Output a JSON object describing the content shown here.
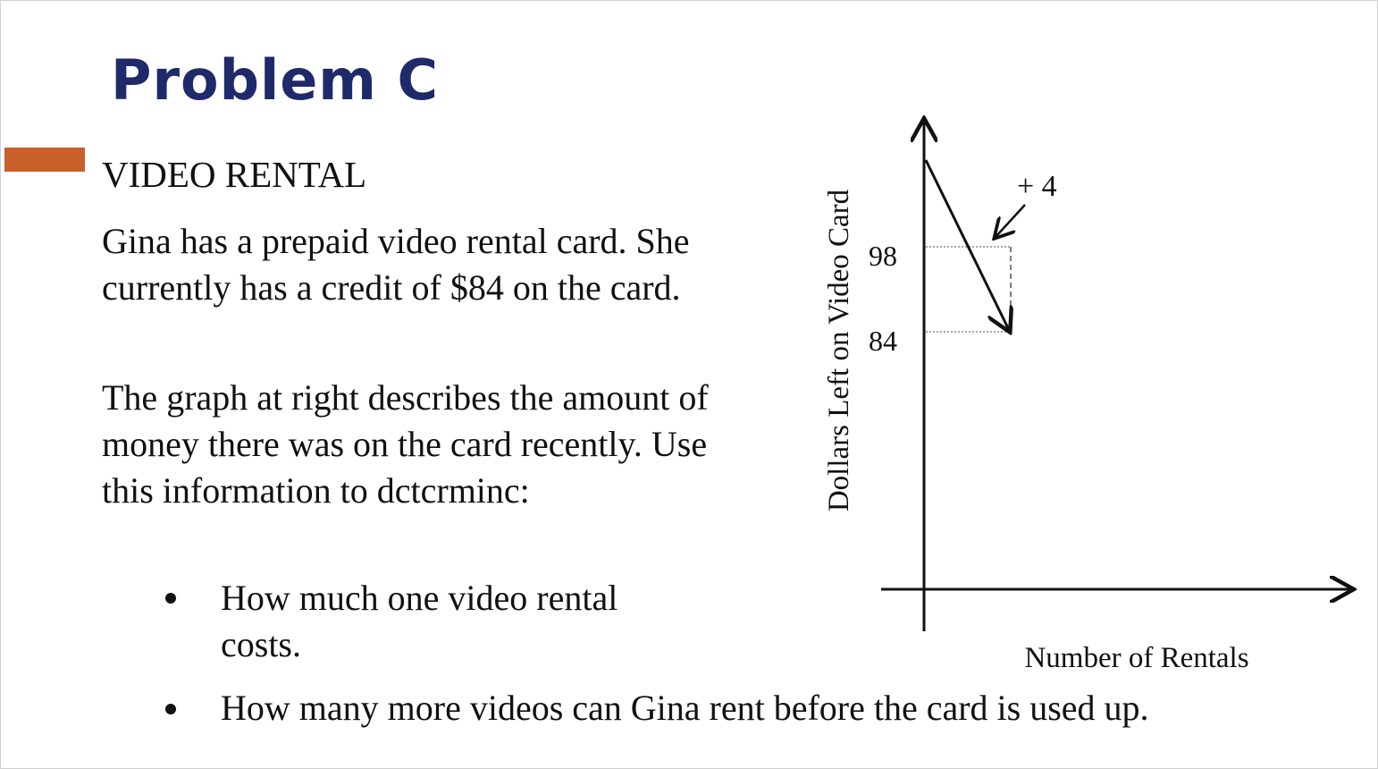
{
  "title": "Problem C",
  "colors": {
    "title": "#1f2a6b",
    "accent_bar": "#c8602c"
  },
  "heading": "VIDEO RENTAL",
  "paragraphs": [
    "Gina has a prepaid video rental card. She currently has a credit of $84 on the card.",
    "The graph at right describes the amount of money there was on the card recently.  Use this information to dctcrminc:"
  ],
  "bullets": [
    "How much one video rental costs.",
    "How many more videos can Gina rent before the card is used up."
  ],
  "graph": {
    "y_label": "Dollars Left on Video Card",
    "x_label": "Number of Rentals",
    "y_ticks": [
      "98",
      "84"
    ],
    "annotation": "+ 4"
  }
}
